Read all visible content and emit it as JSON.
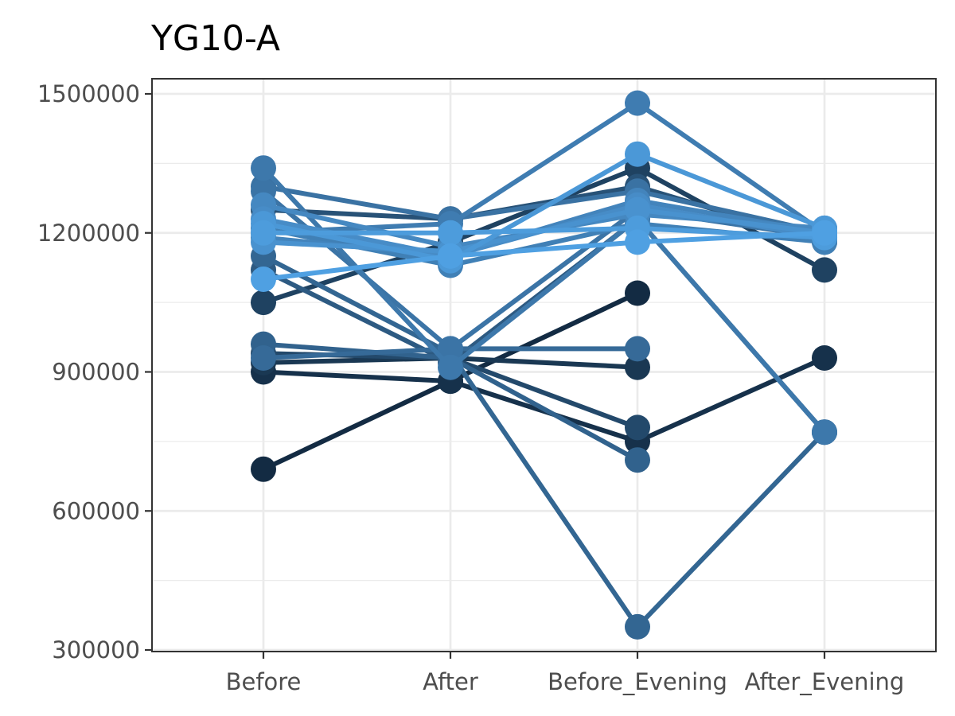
{
  "chart_data": {
    "type": "line",
    "title": "YG10-A",
    "xlabel": "",
    "ylabel": "",
    "categories": [
      "Before",
      "After",
      "Before_Evening",
      "After_Evening"
    ],
    "y_ticks": [
      300000,
      600000,
      900000,
      1200000,
      1500000
    ],
    "y_tick_labels": [
      "300000",
      "600000",
      "900000",
      "1200000",
      "1500000"
    ],
    "ylim": [
      300000,
      1500000
    ],
    "grid": true,
    "legend": "none",
    "series": [
      {
        "color": "#132b43",
        "values": [
          690000,
          880000,
          1070000,
          null
        ]
      },
      {
        "color": "#16314b",
        "values": [
          900000,
          880000,
          750000,
          930000
        ]
      },
      {
        "color": "#1a3853",
        "values": [
          920000,
          930000,
          910000,
          null
        ]
      },
      {
        "color": "#1f4261",
        "values": [
          1050000,
          1180000,
          1340000,
          1120000
        ]
      },
      {
        "color": "#23496b",
        "values": [
          940000,
          930000,
          780000,
          null
        ]
      },
      {
        "color": "#285277",
        "values": [
          1250000,
          1230000,
          1300000,
          1180000
        ]
      },
      {
        "color": "#2d5a82",
        "values": [
          1120000,
          920000,
          1230000,
          770000
        ]
      },
      {
        "color": "#31628d",
        "values": [
          960000,
          930000,
          710000,
          null
        ]
      },
      {
        "color": "#336692",
        "values": [
          1150000,
          940000,
          350000,
          770000
        ]
      },
      {
        "color": "#366a98",
        "values": [
          930000,
          950000,
          950000,
          null
        ]
      },
      {
        "color": "#3a72a3",
        "values": [
          1300000,
          1230000,
          1290000,
          1200000
        ]
      },
      {
        "color": "#3b74a6",
        "values": [
          1290000,
          950000,
          1250000,
          1190000
        ]
      },
      {
        "color": "#3d78ab",
        "values": [
          1340000,
          910000,
          1230000,
          770000
        ]
      },
      {
        "color": "#3f7cb1",
        "values": [
          1200000,
          1220000,
          1480000,
          1200000
        ]
      },
      {
        "color": "#4080b6",
        "values": [
          1210000,
          1130000,
          1220000,
          1180000
        ]
      },
      {
        "color": "#4384bc",
        "values": [
          1190000,
          1150000,
          1270000,
          1200000
        ]
      },
      {
        "color": "#4588c1",
        "values": [
          1260000,
          1170000,
          1240000,
          1210000
        ]
      },
      {
        "color": "#478cc7",
        "values": [
          1230000,
          1150000,
          1260000,
          1190000
        ]
      },
      {
        "color": "#4992cf",
        "values": [
          1180000,
          1160000,
          1250000,
          1200000
        ]
      },
      {
        "color": "#4b98d7",
        "values": [
          1220000,
          1140000,
          1370000,
          1210000
        ]
      },
      {
        "color": "#4d9cdc",
        "values": [
          1200000,
          1200000,
          1210000,
          1190000
        ]
      },
      {
        "color": "#4fa0e2",
        "values": [
          1100000,
          1150000,
          1180000,
          1200000
        ]
      }
    ]
  }
}
